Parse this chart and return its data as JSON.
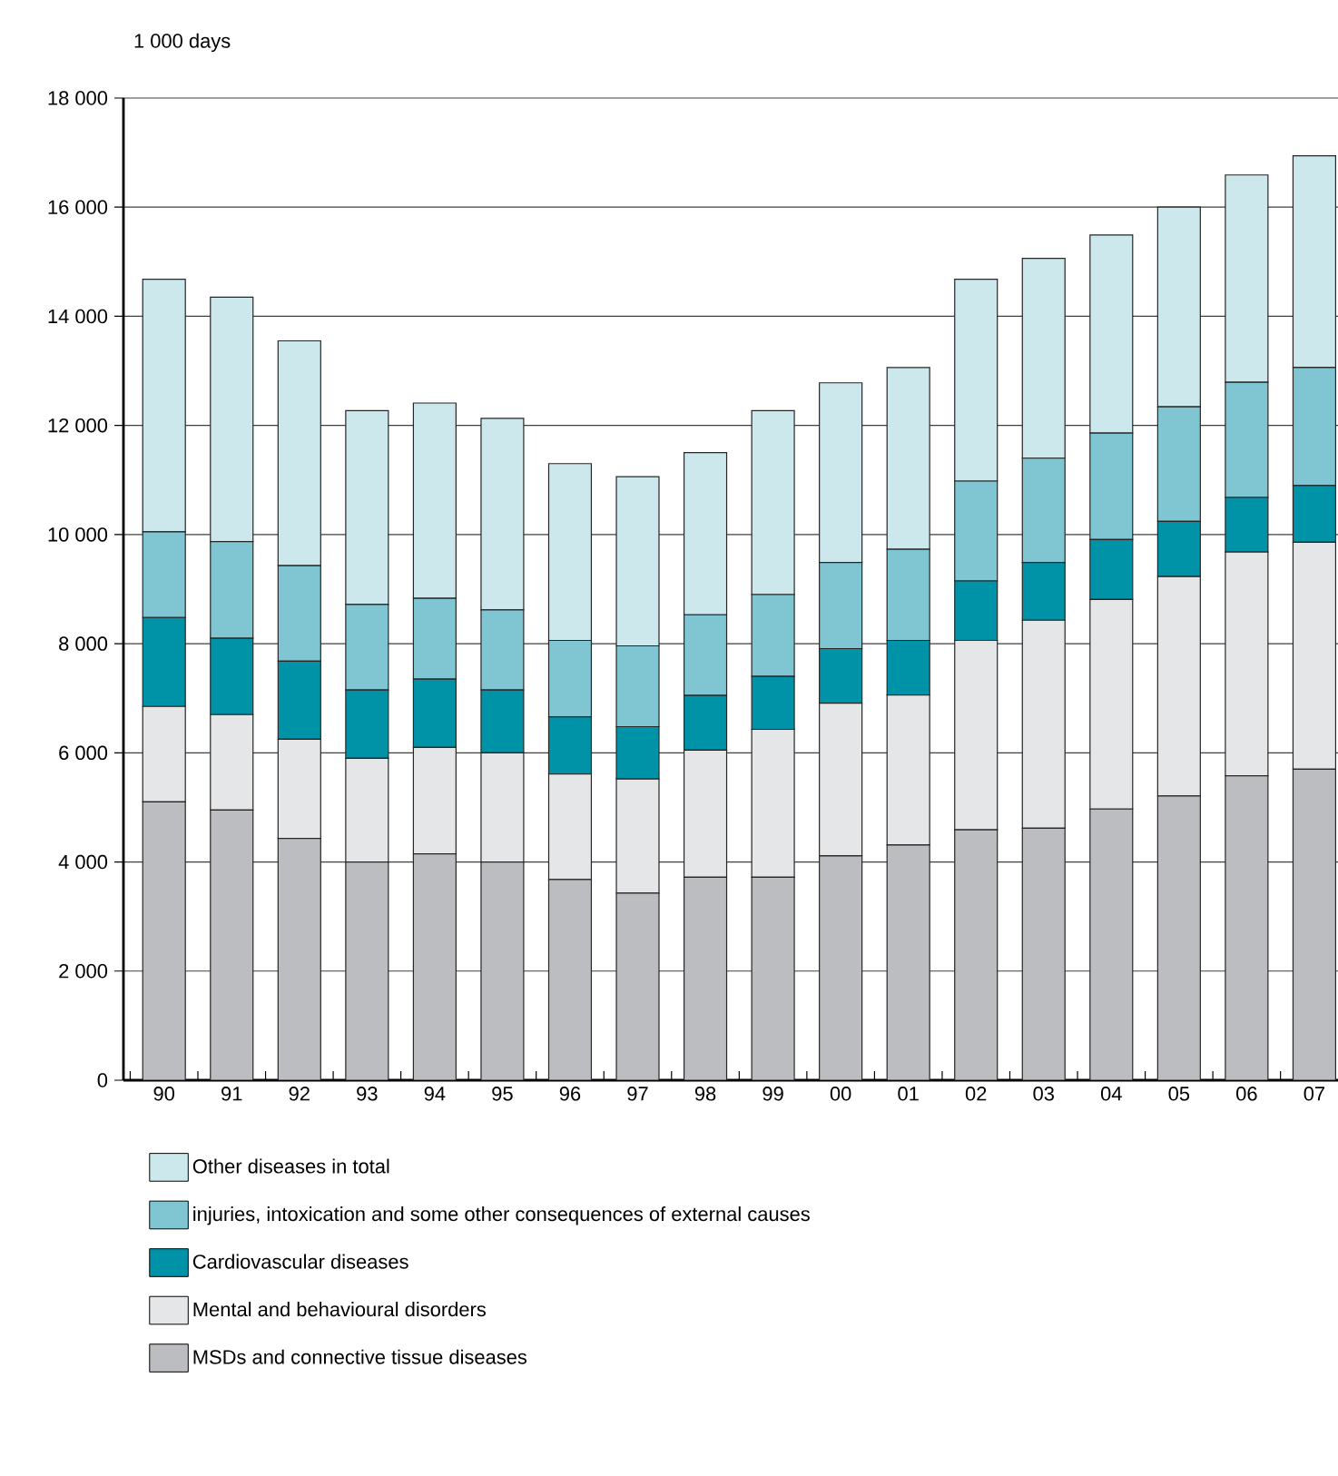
{
  "chart_data": {
    "type": "bar",
    "stacked": true,
    "ylabel": "1 000 days",
    "categories": [
      "90",
      "91",
      "92",
      "93",
      "94",
      "95",
      "96",
      "97",
      "98",
      "99",
      "00",
      "01",
      "02",
      "03",
      "04",
      "05",
      "06",
      "07"
    ],
    "series": [
      {
        "name": "MSDs and connective tissue diseases",
        "color": "#bcbdc1",
        "values": [
          5100,
          4950,
          4430,
          4000,
          4150,
          4000,
          3680,
          3430,
          3720,
          3720,
          4110,
          4310,
          4590,
          4620,
          4970,
          5210,
          5580,
          5700
        ]
      },
      {
        "name": "Mental and behavioural disorders",
        "color": "#e5e6e8",
        "values": [
          1750,
          1750,
          1820,
          1900,
          1950,
          2000,
          1930,
          2090,
          2330,
          2710,
          2800,
          2750,
          3470,
          3810,
          3840,
          4020,
          4100,
          4160
        ]
      },
      {
        "name": "Cardiovascular diseases",
        "color": "#0093a8",
        "values": [
          1630,
          1400,
          1430,
          1250,
          1250,
          1150,
          1050,
          960,
          1000,
          970,
          1000,
          1000,
          1090,
          1060,
          1100,
          1010,
          1000,
          1040
        ]
      },
      {
        "name": "injuries, intoxication and some other consequences of external causes",
        "color": "#7fc5d2",
        "values": [
          1570,
          1770,
          1750,
          1570,
          1480,
          1470,
          1400,
          1480,
          1480,
          1500,
          1580,
          1670,
          1830,
          1910,
          1950,
          2100,
          2110,
          2160
        ]
      },
      {
        "name": "Other diseases in total",
        "color": "#cce8ed",
        "values": [
          4630,
          4480,
          4120,
          3550,
          3580,
          3510,
          3240,
          3100,
          2970,
          3370,
          3290,
          3330,
          3700,
          3660,
          3630,
          3660,
          3800,
          3880
        ]
      }
    ],
    "ylim": [
      0,
      18000
    ],
    "yticks": [
      0,
      {
        "value": 2000,
        "label": "2 000"
      },
      {
        "value": 4000,
        "label": "4 000"
      },
      {
        "value": 6000,
        "label": "6 000"
      },
      {
        "value": 8000,
        "label": "8 000"
      },
      {
        "value": 10000,
        "label": "10 000"
      },
      {
        "value": 12000,
        "label": "12 000"
      },
      {
        "value": 14000,
        "label": "14 000"
      },
      {
        "value": 16000,
        "label": "16 000"
      },
      {
        "value": 18000,
        "label": "18 000"
      }
    ],
    "grid": "y",
    "legend": "bottom"
  }
}
